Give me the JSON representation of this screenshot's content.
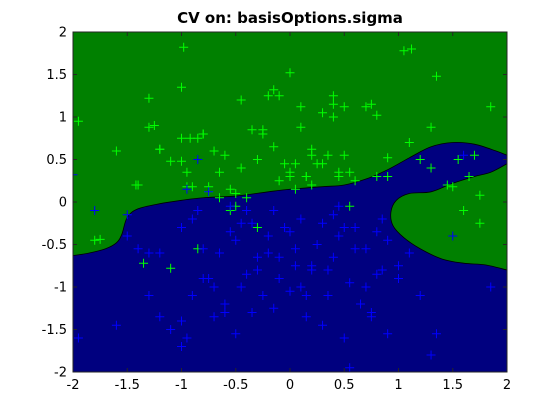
{
  "chart_data": {
    "type": "scatter",
    "title": "CV on:  basisOptions.sigma",
    "xlabel": "",
    "ylabel": "",
    "xlim": [
      -2,
      2
    ],
    "ylim": [
      -2,
      2
    ],
    "xticks": [
      "-2",
      "-1.5",
      "-1",
      "-0.5",
      "0",
      "0.5",
      "1",
      "1.5",
      "2"
    ],
    "yticks": [
      "2",
      "1.5",
      "1",
      "0.5",
      "0",
      "-0.5",
      "-1",
      "-1.5",
      "-2"
    ],
    "grid": false,
    "legend": "none",
    "marker": "+",
    "regions": [
      {
        "class": "upper",
        "color": "#008000"
      },
      {
        "class": "lower",
        "color": "#00007f"
      }
    ],
    "boundary": {
      "main": [
        [
          -2,
          -0.63
        ],
        [
          -1.85,
          -0.6
        ],
        [
          -1.7,
          -0.55
        ],
        [
          -1.6,
          -0.48
        ],
        [
          -1.55,
          -0.38
        ],
        [
          -1.5,
          -0.18
        ],
        [
          -1.4,
          -0.08
        ],
        [
          -1.2,
          -0.02
        ],
        [
          -1.0,
          0.02
        ],
        [
          -0.8,
          0.05
        ],
        [
          -0.5,
          0.07
        ],
        [
          -0.2,
          0.12
        ],
        [
          0.0,
          0.15
        ],
        [
          0.3,
          0.18
        ],
        [
          0.5,
          0.2
        ],
        [
          0.7,
          0.27
        ],
        [
          0.9,
          0.38
        ],
        [
          1.1,
          0.52
        ],
        [
          1.3,
          0.65
        ],
        [
          1.5,
          0.7
        ],
        [
          1.7,
          0.68
        ],
        [
          1.9,
          0.6
        ],
        [
          2.0,
          0.55
        ]
      ],
      "island": [
        [
          2.0,
          0.45
        ],
        [
          1.85,
          0.35
        ],
        [
          1.7,
          0.3
        ],
        [
          1.5,
          0.22
        ],
        [
          1.3,
          0.12
        ],
        [
          1.1,
          0.1
        ],
        [
          0.98,
          0.02
        ],
        [
          0.93,
          -0.12
        ],
        [
          0.95,
          -0.28
        ],
        [
          1.05,
          -0.42
        ],
        [
          1.2,
          -0.55
        ],
        [
          1.4,
          -0.67
        ],
        [
          1.6,
          -0.72
        ],
        [
          1.8,
          -0.74
        ],
        [
          2.0,
          -0.8
        ]
      ]
    },
    "series": [
      {
        "color": "#00ff00",
        "x": [
          -1.95,
          -1.8,
          -1.6,
          -1.42,
          -1.35,
          -1.3,
          -1.25,
          -1.2,
          -1.1,
          -1.0,
          -1.0,
          -1.0,
          -0.98,
          -0.95,
          -0.92,
          -0.85,
          -0.8,
          -0.75,
          -0.7,
          -0.65,
          -0.6,
          -0.55,
          -0.5,
          -0.45,
          -0.4,
          -0.35,
          -0.3,
          -0.25,
          -0.2,
          -0.15,
          -0.15,
          -0.1,
          -0.05,
          0.0,
          0.0,
          0.05,
          0.1,
          0.15,
          0.2,
          0.25,
          0.3,
          0.4,
          0.4,
          0.45,
          0.5,
          0.55,
          0.6,
          0.7,
          0.75,
          0.8,
          0.9,
          1.05,
          1.12,
          1.2,
          1.3,
          1.35,
          1.45,
          1.55,
          1.7,
          1.75,
          1.85,
          -1.75,
          -1.4,
          -1.3,
          -1.2,
          -1.1,
          -0.95,
          -0.85,
          -0.8,
          -0.75,
          -0.65,
          -0.55,
          -0.5,
          -0.3,
          -0.25,
          0.0,
          0.05,
          0.15,
          0.2,
          0.35,
          0.45,
          0.55,
          0.8,
          0.9,
          1.1,
          1.3,
          1.5,
          1.6,
          1.65,
          1.75,
          -0.9,
          -0.45,
          0.1,
          0.3,
          0.2,
          -0.1,
          0.4,
          0.5
        ],
        "y": [
          0.95,
          -0.45,
          0.6,
          0.2,
          -0.72,
          1.22,
          0.9,
          0.62,
          -0.78,
          1.35,
          0.75,
          0.48,
          1.82,
          0.35,
          0.75,
          -0.55,
          0.8,
          0.18,
          0.6,
          0.05,
          0.55,
          0.15,
          -0.05,
          0.4,
          0.05,
          0.85,
          -0.3,
          0.85,
          1.25,
          1.32,
          0.65,
          0.25,
          0.45,
          1.52,
          0.35,
          0.45,
          1.12,
          0.3,
          0.62,
          0.45,
          0.45,
          1.25,
          1.15,
          0.35,
          1.12,
          -0.05,
          0.25,
          1.12,
          1.15,
          1.02,
          0.3,
          1.78,
          1.8,
          0.5,
          0.88,
          1.48,
          0.2,
          0.5,
          0.55,
          0.08,
          1.12,
          -0.44,
          0.2,
          0.88,
          0.62,
          0.48,
          0.18,
          0.75,
          0.8,
          0.12,
          0.35,
          -0.1,
          0.1,
          0.5,
          0.8,
          0.3,
          0.15,
          0.3,
          0.2,
          0.55,
          0.3,
          0.35,
          0.3,
          0.52,
          0.7,
          0.4,
          0.18,
          -0.1,
          0.3,
          -0.25,
          0.18,
          1.2,
          0.88,
          1.05,
          0.55,
          1.25,
          1.0,
          0.55
        ]
      },
      {
        "color": "#0000ff",
        "x": [
          -2.0,
          -1.95,
          -1.6,
          -1.5,
          -1.4,
          -1.3,
          -1.2,
          -1.1,
          -1.0,
          -1.0,
          -0.95,
          -0.9,
          -0.85,
          -0.8,
          -0.75,
          -0.7,
          -0.65,
          -0.6,
          -0.55,
          -0.5,
          -0.45,
          -0.4,
          -0.35,
          -0.3,
          -0.25,
          -0.2,
          -0.15,
          -0.1,
          -0.05,
          0.0,
          0.05,
          0.1,
          0.15,
          0.2,
          0.25,
          0.3,
          0.35,
          0.4,
          0.45,
          0.5,
          0.55,
          0.6,
          0.65,
          0.7,
          0.75,
          0.8,
          0.85,
          0.9,
          1.0,
          1.1,
          1.2,
          1.3,
          1.35,
          1.5,
          1.6,
          1.85,
          -1.8,
          -1.5,
          -1.2,
          -1.0,
          -0.8,
          -0.6,
          -0.4,
          -0.2,
          0.0,
          0.2,
          0.4,
          0.6,
          0.8,
          1.0,
          -0.9,
          -0.7,
          -0.5,
          -0.3,
          -0.1,
          0.1,
          0.3,
          0.5,
          0.7,
          0.9,
          -1.3,
          -0.85,
          -0.45,
          0.05,
          0.45,
          0.85,
          -0.95,
          -0.75,
          -0.55,
          -0.35,
          -0.15,
          0.15,
          0.35,
          0.55,
          0.75
        ],
        "y": [
          0.32,
          -1.6,
          -1.45,
          -0.4,
          -0.55,
          -1.1,
          -1.35,
          -1.5,
          -1.4,
          -1.7,
          0.15,
          -0.2,
          0.5,
          -0.55,
          0.12,
          -1.0,
          -0.6,
          -1.3,
          -0.35,
          -1.55,
          -1.0,
          -0.85,
          -0.25,
          -0.65,
          -1.1,
          -0.4,
          -1.25,
          -0.9,
          -0.3,
          -1.05,
          -0.55,
          -0.2,
          -1.35,
          -0.8,
          -0.5,
          -0.25,
          -1.1,
          -0.65,
          -0.4,
          -1.6,
          -0.95,
          -0.3,
          -1.2,
          -0.55,
          -1.35,
          -0.85,
          -0.2,
          -1.55,
          -0.9,
          -0.6,
          -1.1,
          -1.8,
          -1.55,
          -0.4,
          0.55,
          -1.0,
          -0.1,
          -0.15,
          -0.6,
          -0.3,
          -0.9,
          -1.2,
          -0.1,
          -0.6,
          -0.35,
          -0.75,
          -0.15,
          -0.55,
          -0.35,
          -0.75,
          -1.1,
          -1.35,
          -0.45,
          -0.8,
          -0.65,
          -1.0,
          -1.45,
          -0.3,
          -1.0,
          -0.45,
          -0.6,
          -0.1,
          -0.25,
          -0.75,
          -0.05,
          -0.8,
          -1.6,
          -0.9,
          -0.05,
          -1.3,
          -0.1,
          -1.1,
          -0.8,
          -1.95,
          -1.3
        ]
      }
    ]
  }
}
